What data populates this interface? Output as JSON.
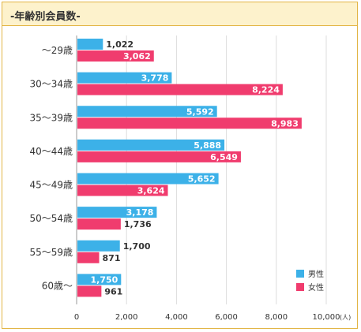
{
  "title": "-年齢別会員数-",
  "colors": {
    "male": "#3cb1e8",
    "female": "#f03c6e",
    "border": "#e2b545",
    "header_bg": "#fdf2cc"
  },
  "chart_data": {
    "type": "bar",
    "orientation": "horizontal",
    "categories": [
      "～29歳",
      "30～34歳",
      "35～39歳",
      "40～44歳",
      "45～49歳",
      "50～54歳",
      "55～59歳",
      "60歳～"
    ],
    "series": [
      {
        "name": "男性",
        "color": "#3cb1e8",
        "values": [
          1022,
          3778,
          5592,
          5888,
          5652,
          3178,
          1700,
          1750
        ]
      },
      {
        "name": "女性",
        "color": "#f03c6e",
        "values": [
          3062,
          8224,
          8983,
          6549,
          3624,
          1736,
          871,
          961
        ]
      }
    ],
    "value_labels": [
      [
        "1,022",
        "3,778",
        "5,592",
        "5,888",
        "5,652",
        "3,178",
        "1,700",
        "1,750"
      ],
      [
        "3,062",
        "8,224",
        "8,983",
        "6,549",
        "3,624",
        "1,736",
        "871",
        "961"
      ]
    ],
    "xlim": [
      0,
      10000
    ],
    "x_ticks": [
      0,
      2000,
      4000,
      6000,
      8000,
      10000
    ],
    "x_tick_labels": [
      "0",
      "2,000",
      "4,000",
      "6,000",
      "8,000",
      "10,000"
    ],
    "x_unit": "(人)",
    "grid": true,
    "legend_position": "bottom-right"
  }
}
